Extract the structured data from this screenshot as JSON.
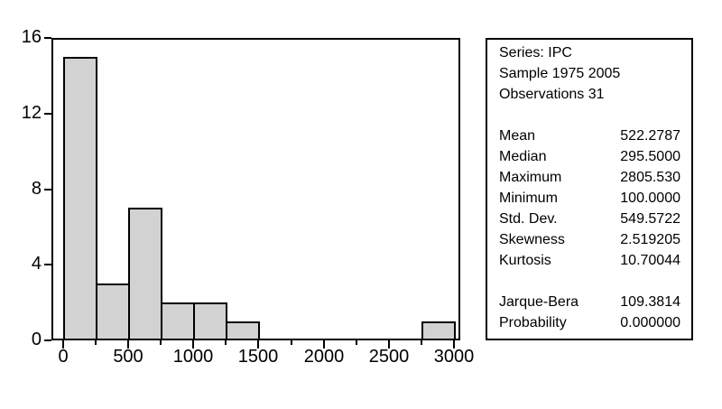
{
  "window": {
    "background": "#ffffff",
    "foreground": "#000000"
  },
  "chart_data": {
    "type": "bar",
    "subtype": "histogram",
    "title": "",
    "series_name": "IPC",
    "bin_start": 0,
    "bin_width": 250,
    "bin_counts": [
      15,
      3,
      7,
      2,
      2,
      1,
      0,
      0,
      0,
      0,
      0,
      1
    ],
    "x_axis": {
      "tick_min": 0,
      "tick_max": 3000,
      "minor_tick_step": 250,
      "major_tick_step": 500,
      "label_values": [
        0,
        500,
        1000,
        1500,
        2000,
        2500,
        3000
      ],
      "labels": [
        "0",
        "500",
        "1000",
        "1500",
        "2000",
        "2500",
        "3000"
      ]
    },
    "y_axis": {
      "min": 0,
      "max": 16,
      "label_values": [
        0,
        4,
        8,
        12,
        16
      ],
      "labels": [
        "0",
        "4",
        "8",
        "12",
        "16"
      ]
    },
    "ylim": [
      0,
      16
    ],
    "grid": false,
    "legend": "none",
    "bar_fill": "#d2d2d2",
    "bar_border": "#000000",
    "frame_color": "#000000"
  },
  "stats_panel": {
    "header": [
      "Series: IPC",
      "Sample 1975 2005",
      "Observations 31"
    ],
    "groups": [
      {
        "rows": [
          {
            "label": "Mean",
            "value": "522.2787"
          },
          {
            "label": "Median",
            "value": "295.5000"
          },
          {
            "label": "Maximum",
            "value": "2805.530"
          },
          {
            "label": "Minimum",
            "value": "100.0000"
          },
          {
            "label": "Std. Dev.",
            "value": "549.5722"
          },
          {
            "label": "Skewness",
            "value": "2.519205"
          },
          {
            "label": "Kurtosis",
            "value": "10.70044"
          }
        ]
      },
      {
        "rows": [
          {
            "label": "Jarque-Bera",
            "value": "109.3814"
          },
          {
            "label": "Probability",
            "value": "0.000000"
          }
        ]
      }
    ]
  }
}
